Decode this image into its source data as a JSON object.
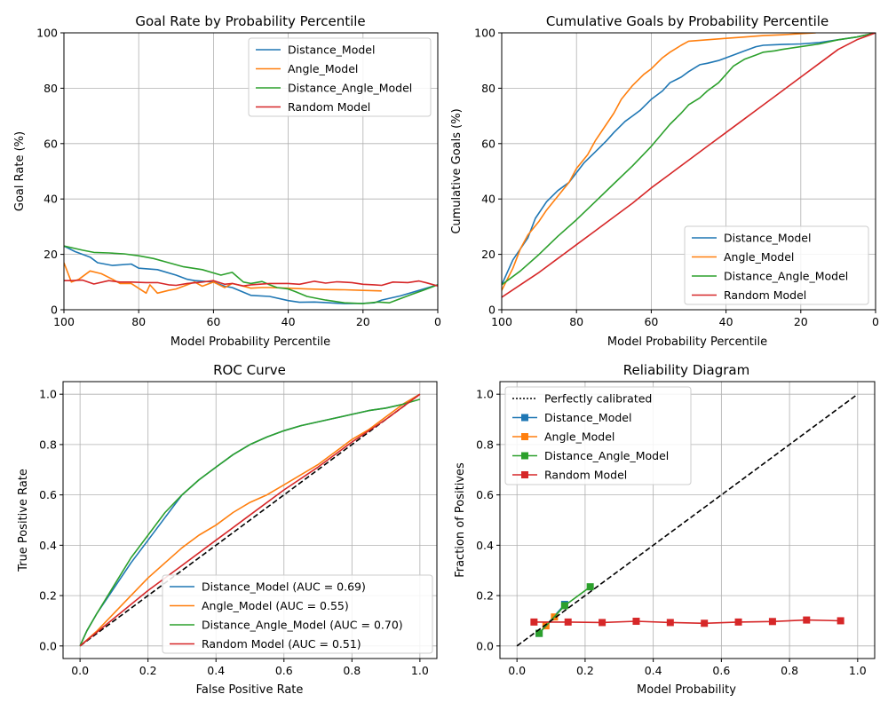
{
  "colors": {
    "blue": "#1f77b4",
    "orange": "#ff7f0e",
    "green": "#2ca02c",
    "red": "#d62728",
    "grid": "#b0b0b0",
    "diagonal": "#000000"
  },
  "chart_data": [
    {
      "type": "line",
      "title": "Goal Rate by Probability Percentile",
      "xlabel": "Model Probability Percentile",
      "ylabel": "Goal Rate (%)",
      "xlim": [
        100,
        0
      ],
      "ylim": [
        0,
        100
      ],
      "x_reversed": true,
      "xticks": [
        100,
        80,
        60,
        40,
        20,
        0
      ],
      "xtick_labels": [
        "100",
        "80",
        "60",
        "40",
        "20",
        "0"
      ],
      "yticks": [
        0,
        20,
        40,
        60,
        80,
        100
      ],
      "ytick_labels": [
        "0",
        "20",
        "40",
        "60",
        "80",
        "100"
      ],
      "grid": true,
      "legend_position": "top-right",
      "series": [
        {
          "name": "Distance_Model",
          "color": "#1f77b4",
          "x": [
            100,
            97,
            93,
            91,
            87,
            82,
            80,
            75,
            70,
            67,
            65,
            60,
            57,
            55,
            50,
            45,
            40,
            37,
            33,
            30,
            25,
            20,
            17,
            15,
            10,
            5,
            0
          ],
          "y": [
            23,
            21,
            19,
            17,
            16,
            16.5,
            15,
            14.5,
            12.5,
            11,
            10.5,
            10,
            8.5,
            8,
            5.2,
            4.8,
            3.3,
            2.7,
            2.8,
            2.6,
            2.2,
            2.3,
            2.5,
            3.5,
            5,
            7,
            9
          ]
        },
        {
          "name": "Angle_Model",
          "color": "#ff7f0e",
          "x": [
            100,
            98,
            96,
            93,
            90,
            87,
            85,
            82,
            78,
            77,
            75,
            72,
            70,
            67,
            65,
            63,
            60,
            57,
            55,
            52,
            50,
            47,
            45,
            40,
            35,
            30,
            25,
            20,
            15
          ],
          "y": [
            17,
            10,
            11,
            14,
            13,
            11,
            9.5,
            9.5,
            6,
            9,
            6,
            7,
            7.5,
            9,
            10,
            8.5,
            10,
            8,
            9.5,
            8.5,
            7.8,
            8,
            8,
            7.8,
            7.5,
            7.3,
            7.2,
            7,
            6.8
          ]
        },
        {
          "name": "Distance_Angle_Model",
          "color": "#2ca02c",
          "x": [
            100,
            95,
            92,
            88,
            84,
            80,
            76,
            72,
            68,
            63,
            58,
            55,
            52,
            50,
            47,
            45,
            43,
            40,
            38,
            35,
            32,
            30,
            25,
            20,
            16,
            13,
            10,
            7,
            4,
            0
          ],
          "y": [
            23,
            21.5,
            20.7,
            20.5,
            20.2,
            19.5,
            18.5,
            17,
            15.5,
            14.5,
            12.5,
            13.5,
            10,
            9.5,
            10.2,
            9,
            8,
            7.5,
            6.5,
            4.8,
            4,
            3.5,
            2.5,
            2.2,
            2.8,
            2.5,
            4,
            5.5,
            7,
            9
          ]
        },
        {
          "name": "Random Model",
          "color": "#d62728",
          "x": [
            100,
            98,
            95,
            92,
            88,
            85,
            82,
            78,
            75,
            72,
            70,
            67,
            63,
            60,
            57,
            55,
            52,
            50,
            45,
            40,
            37,
            33,
            30,
            27,
            23,
            20,
            17,
            15,
            12,
            8,
            5,
            3,
            0
          ],
          "y": [
            10.5,
            10.5,
            10.7,
            9.3,
            10.5,
            10,
            10,
            9.8,
            9.8,
            9,
            8.8,
            9.5,
            10,
            10.5,
            9.2,
            9.5,
            8.6,
            9,
            9.5,
            9.5,
            9.2,
            10.3,
            9.6,
            10.1,
            9.8,
            9.2,
            9,
            8.8,
            10,
            9.8,
            10.4,
            9.7,
            8.6
          ]
        }
      ]
    },
    {
      "type": "line",
      "title": "Cumulative Goals by Probability Percentile",
      "xlabel": "Model Probability Percentile",
      "ylabel": "Cumulative Goals (%)",
      "xlim": [
        100,
        0
      ],
      "ylim": [
        0,
        100
      ],
      "x_reversed": true,
      "xticks": [
        100,
        80,
        60,
        40,
        20,
        0
      ],
      "xtick_labels": [
        "100",
        "80",
        "60",
        "40",
        "20",
        "0"
      ],
      "yticks": [
        0,
        20,
        40,
        60,
        80,
        100
      ],
      "ytick_labels": [
        "0",
        "20",
        "40",
        "60",
        "80",
        "100"
      ],
      "grid": true,
      "legend_position": "bottom-right",
      "series": [
        {
          "name": "Distance_Model",
          "color": "#1f77b4",
          "x": [
            100,
            97,
            93,
            91,
            88,
            85,
            82,
            78,
            75,
            72,
            70,
            67,
            65,
            63,
            60,
            57,
            55,
            52,
            50,
            47,
            45,
            42,
            40,
            38,
            35,
            32,
            30,
            27,
            25,
            20,
            15,
            10,
            5,
            0
          ],
          "y": [
            9,
            18,
            26,
            33,
            39,
            43,
            46,
            53,
            57,
            61,
            64,
            68,
            70,
            72,
            76,
            79,
            82,
            84,
            86,
            88.5,
            89,
            90,
            91,
            92,
            93.5,
            95,
            95.5,
            95.7,
            95.8,
            96,
            96.5,
            97.5,
            98.5,
            100
          ]
        },
        {
          "name": "Angle_Model",
          "color": "#ff7f0e",
          "x": [
            100,
            97,
            95,
            93,
            90,
            88,
            85,
            82,
            80,
            77,
            75,
            72,
            70,
            68,
            65,
            62,
            60,
            57,
            55,
            52,
            50,
            45,
            40,
            35,
            30,
            25,
            20,
            16
          ],
          "y": [
            7,
            15,
            22,
            27,
            32,
            36,
            41,
            46,
            51,
            56,
            61,
            67,
            71,
            76,
            81,
            85,
            87,
            91,
            93,
            95.5,
            97,
            97.5,
            98,
            98.5,
            99,
            99.3,
            99.7,
            100
          ]
        },
        {
          "name": "Distance_Angle_Model",
          "color": "#2ca02c",
          "x": [
            100,
            95,
            90,
            85,
            80,
            75,
            70,
            65,
            60,
            55,
            52,
            50,
            47,
            45,
            42,
            40,
            38,
            35,
            32,
            30,
            27,
            25,
            20,
            15,
            10,
            5,
            0
          ],
          "y": [
            9,
            14,
            20,
            26.5,
            32.5,
            39,
            45.5,
            52,
            59,
            67,
            71,
            74,
            76.5,
            79,
            82,
            85,
            88,
            90.5,
            92,
            93,
            93.5,
            94,
            95,
            96,
            97.5,
            98.5,
            100
          ]
        },
        {
          "name": "Random Model",
          "color": "#d62728",
          "x": [
            100,
            95,
            90,
            85,
            80,
            75,
            70,
            65,
            60,
            55,
            50,
            45,
            40,
            35,
            30,
            25,
            20,
            15,
            10,
            5,
            0
          ],
          "y": [
            4.5,
            9,
            13.5,
            18.5,
            23.5,
            28.5,
            33.5,
            38.5,
            44,
            49,
            54,
            59,
            64,
            69,
            74,
            79,
            84,
            89,
            94,
            97.5,
            100
          ]
        }
      ]
    },
    {
      "type": "line",
      "title": "ROC Curve",
      "xlabel": "False Positive Rate",
      "ylabel": "True Positive Rate",
      "xlim": [
        -0.05,
        1.05
      ],
      "ylim": [
        -0.05,
        1.05
      ],
      "xticks": [
        0,
        0.2,
        0.4,
        0.6,
        0.8,
        1.0
      ],
      "xtick_labels": [
        "0.0",
        "0.2",
        "0.4",
        "0.6",
        "0.8",
        "1.0"
      ],
      "yticks": [
        0,
        0.2,
        0.4,
        0.6,
        0.8,
        1.0
      ],
      "ytick_labels": [
        "0.0",
        "0.2",
        "0.4",
        "0.6",
        "0.8",
        "1.0"
      ],
      "grid": true,
      "legend_position": "bottom-right",
      "diagonal": {
        "x": [
          0,
          1
        ],
        "y": [
          0,
          1
        ],
        "style": "dashed"
      },
      "series": [
        {
          "name": "Distance_Model (AUC = 0.69)",
          "color": "#1f77b4",
          "x": [
            0,
            0.02,
            0.05,
            0.1,
            0.15,
            0.2,
            0.25,
            0.3,
            0.35,
            0.4,
            0.45,
            0.5,
            0.55,
            0.6,
            0.65,
            0.7,
            0.75,
            0.8,
            0.85,
            0.9,
            0.95,
            1.0
          ],
          "y": [
            0,
            0.06,
            0.13,
            0.23,
            0.33,
            0.42,
            0.51,
            0.6,
            0.66,
            0.71,
            0.76,
            0.8,
            0.83,
            0.855,
            0.875,
            0.89,
            0.905,
            0.92,
            0.935,
            0.945,
            0.96,
            1.0
          ]
        },
        {
          "name": "Angle_Model (AUC = 0.55)",
          "color": "#ff7f0e",
          "x": [
            0,
            0.05,
            0.1,
            0.15,
            0.2,
            0.25,
            0.3,
            0.35,
            0.4,
            0.45,
            0.5,
            0.55,
            0.6,
            0.65,
            0.7,
            0.75,
            0.8,
            0.85,
            0.9,
            0.95,
            1.0
          ],
          "y": [
            0,
            0.06,
            0.13,
            0.2,
            0.27,
            0.33,
            0.39,
            0.44,
            0.48,
            0.53,
            0.57,
            0.6,
            0.64,
            0.68,
            0.72,
            0.77,
            0.82,
            0.86,
            0.91,
            0.96,
            1.0
          ]
        },
        {
          "name": "Distance_Angle_Model (AUC = 0.70)",
          "color": "#2ca02c",
          "x": [
            0,
            0.02,
            0.05,
            0.1,
            0.15,
            0.2,
            0.25,
            0.3,
            0.35,
            0.4,
            0.45,
            0.5,
            0.55,
            0.6,
            0.65,
            0.7,
            0.75,
            0.8,
            0.85,
            0.9,
            0.95,
            1.0
          ],
          "y": [
            0,
            0.06,
            0.13,
            0.24,
            0.35,
            0.44,
            0.53,
            0.6,
            0.66,
            0.71,
            0.76,
            0.8,
            0.83,
            0.855,
            0.875,
            0.89,
            0.905,
            0.92,
            0.935,
            0.945,
            0.96,
            0.98
          ]
        },
        {
          "name": "Random Model (AUC = 0.51)",
          "color": "#d62728",
          "x": [
            0,
            0.1,
            0.2,
            0.3,
            0.4,
            0.5,
            0.6,
            0.7,
            0.8,
            0.9,
            1.0
          ],
          "y": [
            0,
            0.11,
            0.22,
            0.32,
            0.42,
            0.52,
            0.62,
            0.71,
            0.81,
            0.9,
            1.0
          ]
        }
      ]
    },
    {
      "type": "line",
      "title": "Reliability Diagram",
      "xlabel": "Model Probability",
      "ylabel": "Fraction of Positives",
      "xlim": [
        -0.05,
        1.05
      ],
      "ylim": [
        -0.05,
        1.05
      ],
      "xticks": [
        0,
        0.2,
        0.4,
        0.6,
        0.8,
        1.0
      ],
      "xtick_labels": [
        "0.0",
        "0.2",
        "0.4",
        "0.6",
        "0.8",
        "1.0"
      ],
      "yticks": [
        0,
        0.2,
        0.4,
        0.6,
        0.8,
        1.0
      ],
      "ytick_labels": [
        "0.0",
        "0.2",
        "0.4",
        "0.6",
        "0.8",
        "1.0"
      ],
      "grid": true,
      "legend_position": "top-left",
      "reference": {
        "name": "Perfectly calibrated",
        "x": [
          0,
          1
        ],
        "y": [
          0,
          1
        ],
        "style": "dotted"
      },
      "series": [
        {
          "name": "Distance_Model",
          "color": "#1f77b4",
          "marker": "square",
          "x": [
            0.065,
            0.14
          ],
          "y": [
            0.05,
            0.165
          ]
        },
        {
          "name": "Angle_Model",
          "color": "#ff7f0e",
          "marker": "square",
          "x": [
            0.085,
            0.11
          ],
          "y": [
            0.08,
            0.115
          ]
        },
        {
          "name": "Distance_Angle_Model",
          "color": "#2ca02c",
          "marker": "square",
          "x": [
            0.065,
            0.14,
            0.215
          ],
          "y": [
            0.05,
            0.16,
            0.235
          ]
        },
        {
          "name": "Random Model",
          "color": "#d62728",
          "marker": "square",
          "x": [
            0.05,
            0.15,
            0.25,
            0.35,
            0.45,
            0.55,
            0.65,
            0.75,
            0.85,
            0.95
          ],
          "y": [
            0.095,
            0.095,
            0.093,
            0.098,
            0.093,
            0.09,
            0.095,
            0.097,
            0.103,
            0.1
          ]
        }
      ]
    }
  ]
}
